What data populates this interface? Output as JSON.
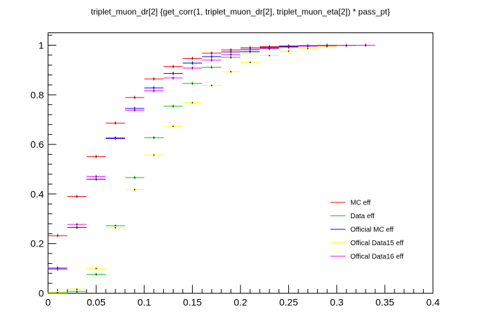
{
  "chart_data": {
    "type": "scatter",
    "title": "triplet_muon_dr[2]  {get_corr(1, triplet_muon_dr[2], triplet_muon_eta[2]) * pass_pt}",
    "xlabel": "",
    "ylabel": "",
    "xlim": [
      0,
      0.4
    ],
    "ylim": [
      0,
      1.05
    ],
    "xticks": [
      {
        "v": 0,
        "label": "0"
      },
      {
        "v": 0.05,
        "label": "0.05"
      },
      {
        "v": 0.1,
        "label": "0.1"
      },
      {
        "v": 0.15,
        "label": "0.15"
      },
      {
        "v": 0.2,
        "label": "0.2"
      },
      {
        "v": 0.25,
        "label": "0.25"
      },
      {
        "v": 0.3,
        "label": "0.3"
      },
      {
        "v": 0.35,
        "label": "0.35"
      },
      {
        "v": 0.4,
        "label": "0.4"
      }
    ],
    "yticks": [
      {
        "v": 0,
        "label": "0"
      },
      {
        "v": 0.2,
        "label": "0.2"
      },
      {
        "v": 0.4,
        "label": "0.4"
      },
      {
        "v": 0.6,
        "label": "0.6"
      },
      {
        "v": 0.8,
        "label": "0.8"
      },
      {
        "v": 1.0,
        "label": "1"
      }
    ],
    "bin_width": 0.02,
    "x": [
      0.01,
      0.03,
      0.05,
      0.07,
      0.09,
      0.11,
      0.13,
      0.15,
      0.17,
      0.19,
      0.21,
      0.23,
      0.25,
      0.27,
      0.29,
      0.31,
      0.33
    ],
    "legend_position": "lower-right",
    "grid": false,
    "series": [
      {
        "name": "MC eff",
        "color": "#ff0000",
        "values": [
          0.232,
          0.39,
          0.551,
          0.686,
          0.789,
          0.864,
          0.914,
          0.947,
          0.968,
          0.981,
          0.99,
          0.994,
          0.997,
          0.998,
          0.999,
          0.999,
          1.0
        ]
      },
      {
        "name": "Data eff",
        "color": "#00cc00",
        "values": [
          0.003,
          0.007,
          0.076,
          0.272,
          0.466,
          0.627,
          0.754,
          0.846,
          0.911,
          0.951,
          0.973,
          0.988,
          0.994,
          0.997,
          0.998,
          0.999,
          1.0
        ]
      },
      {
        "name": "Official MC eff",
        "color": "#0000ff",
        "values": [
          0.098,
          0.265,
          0.46,
          0.624,
          0.745,
          0.828,
          0.886,
          0.928,
          0.954,
          0.973,
          0.984,
          0.991,
          0.995,
          0.998,
          0.999,
          0.999,
          1.0
        ]
      },
      {
        "name": "Offical Data15 eff",
        "color": "#ffff00",
        "values": [
          0.002,
          0.016,
          0.1,
          0.264,
          0.418,
          0.557,
          0.673,
          0.768,
          0.838,
          0.893,
          0.931,
          0.958,
          0.976,
          0.987,
          0.994,
          0.998,
          1.0
        ]
      },
      {
        "name": "Offical Data16 eff",
        "color": "#ff00ff",
        "values": [
          0.102,
          0.277,
          0.471,
          0.627,
          0.738,
          0.816,
          0.868,
          0.908,
          0.94,
          0.962,
          0.976,
          0.986,
          0.992,
          0.996,
          0.998,
          0.999,
          1.0
        ]
      }
    ]
  }
}
